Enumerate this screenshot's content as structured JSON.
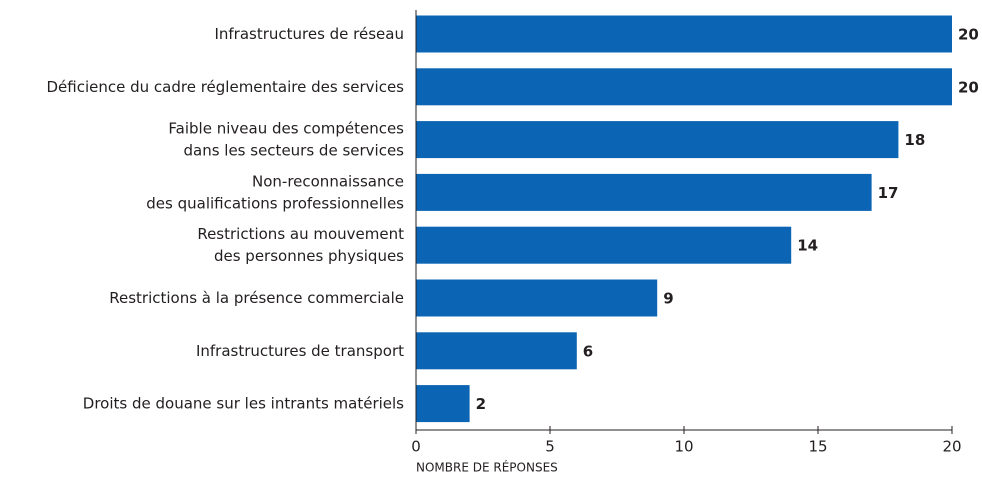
{
  "chart_data": {
    "type": "bar",
    "orientation": "horizontal",
    "categories": [
      [
        "Infrastructures de réseau"
      ],
      [
        "Déficience du cadre réglementaire des services"
      ],
      [
        "Faible niveau des compétences",
        "dans les secteurs de services"
      ],
      [
        "Non-reconnaissance",
        "des qualifications professionnelles"
      ],
      [
        "Restrictions au mouvement",
        "des personnes physiques"
      ],
      [
        "Restrictions à la présence commerciale"
      ],
      [
        "Infrastructures de transport"
      ],
      [
        "Droits de douane sur les intrants matériels"
      ]
    ],
    "values": [
      20,
      20,
      18,
      17,
      14,
      9,
      6,
      2
    ],
    "color": "#0b64b4",
    "xlim": [
      0,
      20
    ],
    "xticks": [
      0,
      5,
      10,
      15,
      20
    ],
    "x_label": "NOMBRE DE RÉPONSES"
  }
}
